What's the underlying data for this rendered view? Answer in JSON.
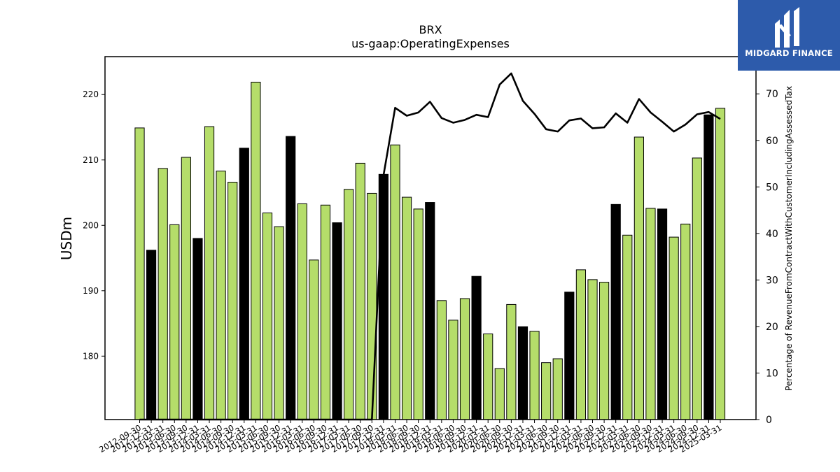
{
  "chart_data": {
    "type": "bar",
    "title": "BRX",
    "subtitle": "us-gaap:OperatingExpenses",
    "ylabel": "USDm",
    "y2label": "Percentage of RevenueFromContractWithCustomerIncludingAssessedTax",
    "ylim": [
      170.3,
      225.8
    ],
    "y2lim": [
      0,
      78
    ],
    "yticks": [
      180,
      190,
      200,
      210,
      220
    ],
    "y2ticks": [
      0,
      10,
      20,
      30,
      40,
      50,
      60,
      70
    ],
    "grid": false,
    "categories": [
      "2012-09-30",
      "2012-12-31",
      "2013-03-31",
      "2013-06-30",
      "2013-09-30",
      "2013-12-31",
      "2014-03-31",
      "2014-06-30",
      "2014-09-30",
      "2014-12-31",
      "2015-03-31",
      "2015-06-30",
      "2015-09-30",
      "2015-12-31",
      "2016-03-31",
      "2016-06-30",
      "2016-09-30",
      "2016-12-31",
      "2017-03-31",
      "2017-06-30",
      "2017-09-30",
      "2017-12-31",
      "2018-03-31",
      "2018-06-30",
      "2018-09-30",
      "2018-12-31",
      "2019-03-31",
      "2019-06-30",
      "2019-09-30",
      "2019-12-31",
      "2020-03-31",
      "2020-06-30",
      "2020-09-30",
      "2020-12-31",
      "2021-03-31",
      "2021-06-30",
      "2021-09-30",
      "2021-12-31",
      "2022-03-31",
      "2022-06-30",
      "2022-09-30",
      "2022-12-31",
      "2023-03-31",
      "2023-06-30",
      "2023-09-30",
      "2023-12-31",
      "2024-03-31",
      "2024-06-30",
      "2024-09-30",
      "2024-12-31",
      "2025-03-31"
    ],
    "values": [
      214.9,
      196.2,
      208.7,
      200.1,
      210.4,
      198.0,
      215.1,
      208.3,
      206.6,
      211.8,
      221.9,
      201.9,
      199.8,
      213.6,
      203.3,
      194.7,
      203.1,
      200.4,
      205.5,
      209.5,
      204.9,
      207.8,
      212.3,
      204.3,
      202.5,
      203.5,
      188.5,
      185.5,
      188.8,
      192.2,
      183.4,
      178.1,
      187.9,
      184.5,
      183.8,
      179.0,
      179.6,
      189.8,
      193.2,
      191.7,
      191.3,
      203.2,
      198.5,
      213.5,
      202.6,
      202.5,
      198.2,
      200.2,
      210.3,
      216.9,
      217.9
    ],
    "bar_colors": [
      "#b5dd6a",
      "#000000",
      "#b5dd6a",
      "#b5dd6a",
      "#b5dd6a",
      "#000000",
      "#b5dd6a",
      "#b5dd6a",
      "#b5dd6a",
      "#000000",
      "#b5dd6a",
      "#b5dd6a",
      "#b5dd6a",
      "#000000",
      "#b5dd6a",
      "#b5dd6a",
      "#b5dd6a",
      "#000000",
      "#b5dd6a",
      "#b5dd6a",
      "#b5dd6a",
      "#000000",
      "#b5dd6a",
      "#b5dd6a",
      "#b5dd6a",
      "#000000",
      "#b5dd6a",
      "#b5dd6a",
      "#b5dd6a",
      "#000000",
      "#b5dd6a",
      "#b5dd6a",
      "#b5dd6a",
      "#000000",
      "#b5dd6a",
      "#b5dd6a",
      "#b5dd6a",
      "#000000",
      "#b5dd6a",
      "#b5dd6a",
      "#b5dd6a",
      "#000000",
      "#b5dd6a",
      "#b5dd6a",
      "#b5dd6a",
      "#000000",
      "#b5dd6a",
      "#b5dd6a",
      "#b5dd6a",
      "#000000",
      "#b5dd6a"
    ],
    "line_values": [
      0,
      0,
      0,
      0,
      0,
      0,
      0,
      0,
      0,
      0,
      0,
      0,
      0,
      0,
      0,
      0,
      0,
      0,
      0,
      0,
      0,
      52.5,
      67.0,
      65.3,
      66.0,
      68.3,
      64.8,
      63.8,
      64.4,
      65.5,
      65.0,
      72.0,
      74.4,
      68.5,
      65.7,
      62.4,
      61.9,
      64.3,
      64.7,
      62.6,
      62.8,
      65.8,
      63.8,
      68.9,
      66.0,
      64.0,
      61.9,
      63.4,
      65.6,
      66.1,
      64.6
    ],
    "colors": {
      "bar_primary": "#b5dd6a",
      "bar_annual": "#000000",
      "line": "#000000"
    }
  },
  "logo": {
    "text": "MIDGARD FINANCE",
    "icon": "midgard-logo-icon"
  }
}
